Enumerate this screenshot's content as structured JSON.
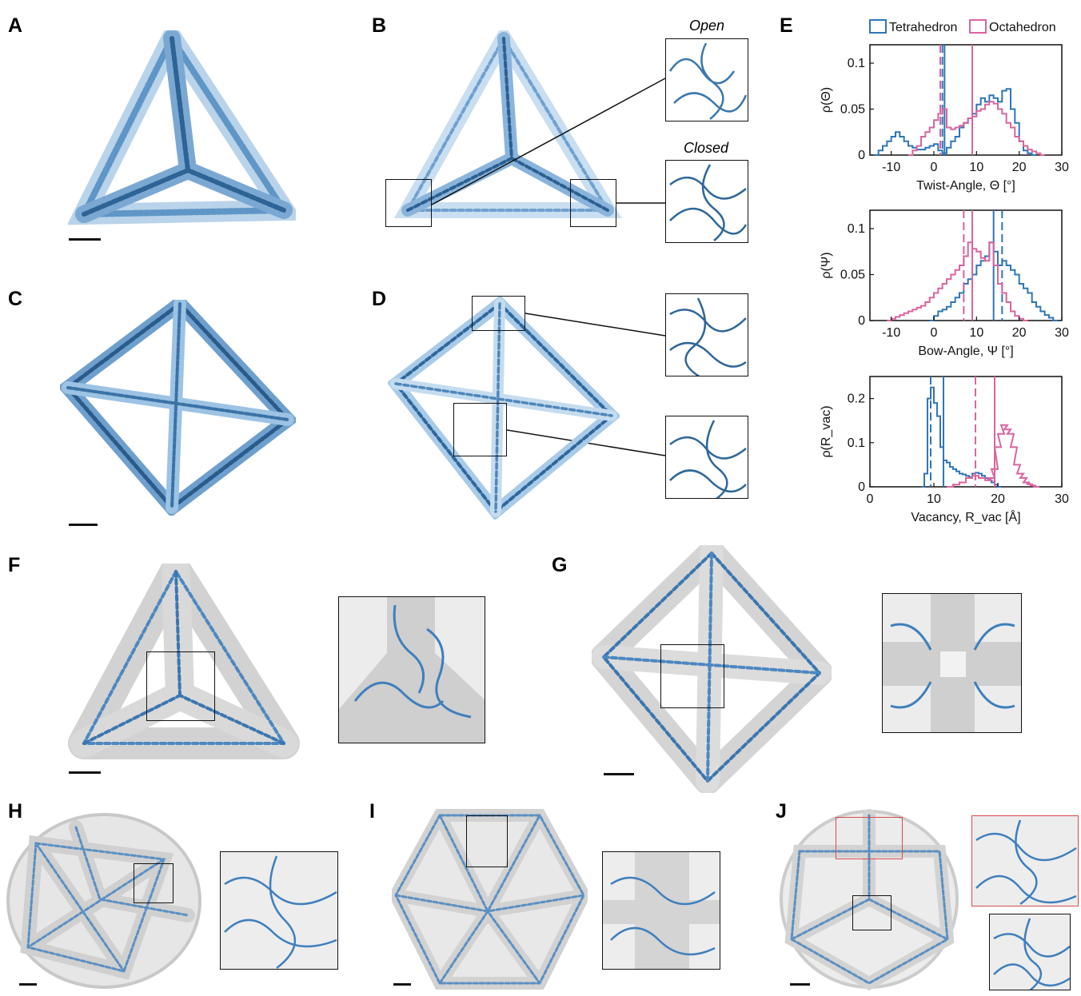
{
  "panels": {
    "A": "A",
    "B": "B",
    "C": "C",
    "D": "D",
    "E": "E",
    "F": "F",
    "G": "G",
    "H": "H",
    "I": "I",
    "J": "J"
  },
  "insets": {
    "open_label": "Open",
    "closed_label": "Closed"
  },
  "colors": {
    "tetrahedron": "#2f76b6",
    "octahedron": "#d9649f",
    "structure_dark": "#2b5d8c",
    "structure_light": "#9cc3e4",
    "density": "#d5d5d5",
    "highlight_box": "#d84b4b"
  },
  "icons": {
    "structure": "protein-cage-ribbon",
    "inset": "vertex-closeup"
  },
  "chart_data": [
    {
      "type": "line",
      "legend": [
        "Tetrahedron",
        "Octahedron"
      ],
      "legend_position": "top",
      "xlabel": "Twist-Angle, Θ [°]",
      "ylabel": "ρ(Θ)",
      "xlim": [
        -15,
        30
      ],
      "ylim": [
        0,
        0.12
      ],
      "xticks": [
        "-10",
        "0",
        "10",
        "20",
        "30"
      ],
      "yticks": [
        "0",
        "0.05",
        "0.1"
      ],
      "series": [
        {
          "name": "Tetrahedron",
          "x": [
            -14,
            -13,
            -12,
            -11,
            -10,
            -9,
            -8,
            -7,
            -6,
            -5,
            -4,
            -3,
            -2,
            -1,
            0,
            1,
            2,
            3,
            4,
            5,
            6,
            7,
            8,
            9,
            10,
            11,
            12,
            13,
            14,
            15,
            16,
            17,
            18,
            19,
            20,
            21,
            22,
            23
          ],
          "values": [
            0,
            0.005,
            0.01,
            0.015,
            0.02,
            0.025,
            0.02,
            0.015,
            0.01,
            0.008,
            0.006,
            0.006,
            0.008,
            0.01,
            0.012,
            0.005,
            0.002,
            0.008,
            0.015,
            0.02,
            0.03,
            0.035,
            0.04,
            0.045,
            0.055,
            0.062,
            0.058,
            0.065,
            0.062,
            0.058,
            0.07,
            0.072,
            0.05,
            0.035,
            0.015,
            0.005,
            0.002,
            0
          ],
          "mean": 2.5,
          "median": 2
        },
        {
          "name": "Octahedron",
          "x": [
            -6,
            -5,
            -4,
            -3,
            -2,
            -1,
            0,
            1,
            2,
            3,
            4,
            5,
            6,
            7,
            8,
            9,
            10,
            11,
            12,
            13,
            14,
            15,
            16,
            17,
            18,
            19,
            20,
            21,
            22,
            23,
            24,
            25
          ],
          "values": [
            0,
            0.005,
            0.01,
            0.02,
            0.025,
            0.03,
            0.038,
            0.045,
            0.05,
            0.03,
            0.028,
            0.03,
            0.032,
            0.035,
            0.04,
            0.042,
            0.048,
            0.05,
            0.055,
            0.058,
            0.056,
            0.05,
            0.045,
            0.035,
            0.03,
            0.02,
            0.015,
            0.01,
            0.006,
            0.004,
            0.002,
            0
          ],
          "mean": 9,
          "median": 1.5
        }
      ]
    },
    {
      "type": "line",
      "xlabel": "Bow-Angle, Ψ [°]",
      "ylabel": "ρ(Ψ)",
      "xlim": [
        -15,
        30
      ],
      "ylim": [
        0,
        0.12
      ],
      "xticks": [
        "-10",
        "0",
        "10",
        "20",
        "30"
      ],
      "yticks": [
        "0",
        "0.05",
        "0.1"
      ],
      "series": [
        {
          "name": "Tetrahedron",
          "x": [
            -1,
            0,
            1,
            2,
            3,
            4,
            5,
            6,
            7,
            8,
            9,
            10,
            11,
            12,
            13,
            14,
            15,
            16,
            17,
            18,
            19,
            20,
            21,
            22,
            23,
            24,
            25,
            26,
            27,
            28
          ],
          "values": [
            0,
            0.005,
            0.01,
            0.012,
            0.015,
            0.02,
            0.025,
            0.03,
            0.04,
            0.045,
            0.05,
            0.06,
            0.065,
            0.07,
            0.085,
            0.075,
            0.06,
            0.065,
            0.06,
            0.055,
            0.05,
            0.04,
            0.035,
            0.03,
            0.02,
            0.015,
            0.01,
            0.006,
            0.003,
            0
          ],
          "mean": 14,
          "median": 16
        },
        {
          "name": "Octahedron",
          "x": [
            -11,
            -10,
            -9,
            -8,
            -7,
            -6,
            -5,
            -4,
            -3,
            -2,
            -1,
            0,
            1,
            2,
            3,
            4,
            5,
            6,
            7,
            8,
            9,
            10,
            11,
            12,
            13,
            14,
            15,
            16,
            17,
            18,
            19,
            20,
            21
          ],
          "values": [
            0,
            0.002,
            0.004,
            0.006,
            0.008,
            0.01,
            0.012,
            0.014,
            0.016,
            0.02,
            0.025,
            0.03,
            0.035,
            0.04,
            0.045,
            0.05,
            0.055,
            0.06,
            0.07,
            0.085,
            0.078,
            0.075,
            0.068,
            0.065,
            0.085,
            0.06,
            0.04,
            0.03,
            0.02,
            0.01,
            0.005,
            0.002,
            0
          ],
          "mean": 9,
          "median": 7
        }
      ]
    },
    {
      "type": "line",
      "xlabel": "Vacancy, R_vac [Å]",
      "ylabel": "ρ(R_vac)",
      "xlim": [
        0,
        30
      ],
      "ylim": [
        0,
        0.25
      ],
      "xticks": [
        "0",
        "10",
        "20",
        "30"
      ],
      "yticks": [
        "0",
        "0.1",
        "0.2"
      ],
      "series": [
        {
          "name": "Tetrahedron",
          "x": [
            8,
            8.5,
            9,
            9.5,
            10,
            10.5,
            11,
            11.5,
            12,
            12.5,
            13,
            13.5,
            14,
            14.5,
            15,
            15.5,
            16,
            16.5,
            17,
            17.5,
            18,
            18.5,
            19,
            19.5,
            20
          ],
          "values": [
            0,
            0.03,
            0.2,
            0.225,
            0.19,
            0.16,
            0.09,
            0.06,
            0.055,
            0.045,
            0.04,
            0.035,
            0.03,
            0.028,
            0.025,
            0.022,
            0.03,
            0.032,
            0.03,
            0.025,
            0.02,
            0.015,
            0.01,
            0.005,
            0
          ],
          "mean": 11.5,
          "median": 9.5
        },
        {
          "name": "Octahedron",
          "x": [
            12,
            13,
            14,
            15,
            16,
            17,
            18,
            18.5,
            19,
            19.5,
            20,
            20.5,
            21,
            21.5,
            22,
            22.5,
            23,
            23.5,
            24,
            24.5,
            25,
            25.5
          ],
          "values": [
            0,
            0.005,
            0.01,
            0.02,
            0.025,
            0.02,
            0.015,
            0.02,
            0.04,
            0.09,
            0.12,
            0.14,
            0.13,
            0.12,
            0.09,
            0.05,
            0.03,
            0.02,
            0.01,
            0.006,
            0.003,
            0
          ],
          "mean": 19.5,
          "median": 16.5
        }
      ]
    }
  ]
}
